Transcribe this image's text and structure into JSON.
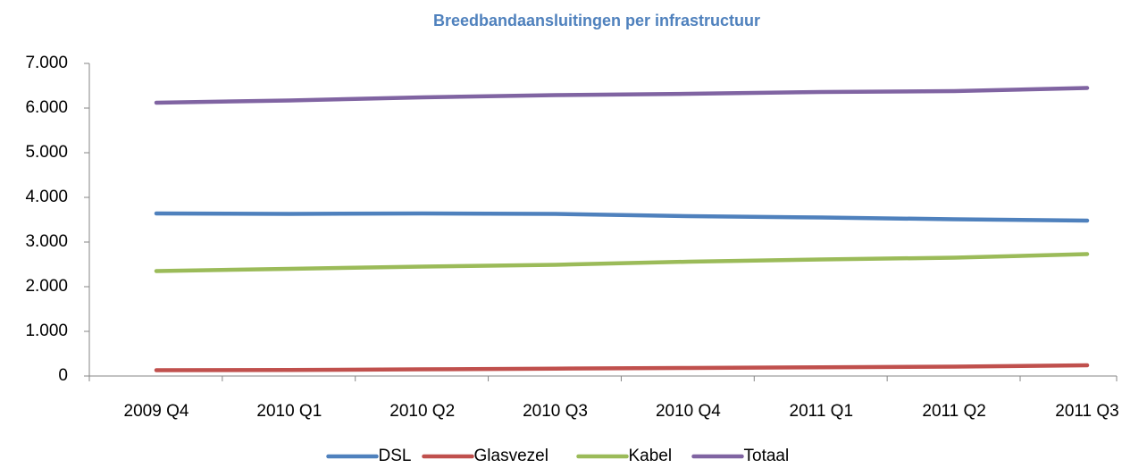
{
  "chart_data": {
    "type": "line",
    "title": "Breedbandaansluitingen per infrastructuur",
    "categories": [
      "2009 Q4",
      "2010 Q1",
      "2010 Q2",
      "2010 Q3",
      "2010 Q4",
      "2011 Q1",
      "2011 Q2",
      "2011 Q3"
    ],
    "series": [
      {
        "name": "DSL",
        "color": "#4f81bd",
        "values": [
          3640,
          3630,
          3640,
          3630,
          3580,
          3550,
          3510,
          3480
        ]
      },
      {
        "name": "Glasvezel",
        "color": "#c0504d",
        "values": [
          130,
          135,
          150,
          165,
          180,
          195,
          210,
          240
        ]
      },
      {
        "name": "Kabel",
        "color": "#9bbb59",
        "values": [
          2350,
          2400,
          2450,
          2490,
          2560,
          2610,
          2650,
          2730
        ]
      },
      {
        "name": "Totaal",
        "color": "#8064a2",
        "values": [
          6120,
          6170,
          6240,
          6290,
          6320,
          6360,
          6380,
          6450
        ]
      }
    ],
    "ylim": [
      0,
      7000
    ],
    "yticks": [
      0,
      {
        "value": 1000,
        "label": "1.000"
      },
      {
        "value": 2000,
        "label": "2.000"
      },
      {
        "value": 3000,
        "label": "3.000"
      },
      {
        "value": 4000,
        "label": "4.000"
      },
      {
        "value": 5000,
        "label": "5.000"
      },
      {
        "value": 6000,
        "label": "6.000"
      },
      {
        "value": 7000,
        "label": "7.000"
      }
    ],
    "legend": "bottom"
  }
}
